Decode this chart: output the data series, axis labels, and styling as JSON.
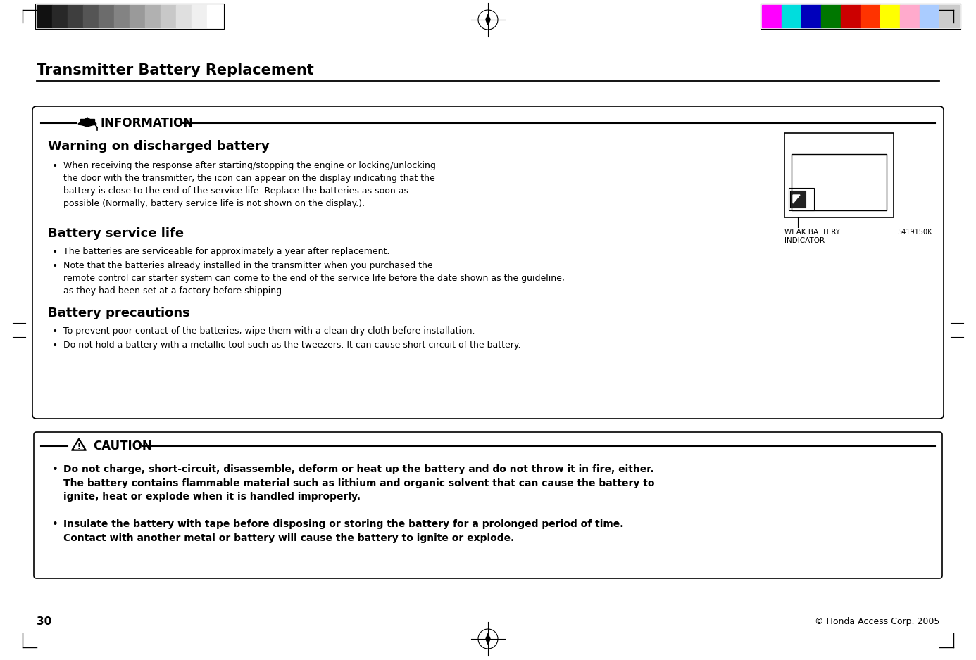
{
  "page_bg": "#ffffff",
  "page_num": "30",
  "copyright": "© Honda Access Corp. 2005",
  "title": "Transmitter Battery Replacement",
  "info_box": {
    "header": "INFORMATION",
    "sections": [
      {
        "heading": "Warning on discharged battery",
        "bullets": [
          "When receiving the response after starting/stopping the engine or locking/unlocking\nthe door with the transmitter, the icon can appear on the display indicating that the\nbattery is close to the end of the service life. Replace the batteries as soon as\npossible (Normally, battery service life is not shown on the display.)."
        ]
      },
      {
        "heading": "Battery service life",
        "bullets": [
          "The batteries are serviceable for approximately a year after replacement.",
          "Note that the batteries already installed in the transmitter when you purchased the\nremote control car starter system can come to the end of the service life before the date shown as the guideline,\nas they had been set at a factory before shipping."
        ]
      },
      {
        "heading": "Battery precautions",
        "bullets": [
          "To prevent poor contact of the batteries, wipe them with a clean dry cloth before installation.",
          "Do not hold a battery with a metallic tool such as the tweezers. It can cause short circuit of the battery."
        ]
      }
    ],
    "image_label1": "WEAK BATTERY",
    "image_label2": "INDICATOR",
    "image_code": "5419150K"
  },
  "caution_box": {
    "header": "CAUTION",
    "bullets": [
      "Do not charge, short-circuit, disassemble, deform or heat up the battery and do not throw it in fire, either.\nThe battery contains flammable material such as lithium and organic solvent that can cause the battery to\nignite, heat or explode when it is handled improperly.",
      "Insulate the battery with tape before disposing or storing the battery for a prolonged period of time.\nContact with another metal or battery will cause the battery to ignite or explode."
    ]
  },
  "color_bars_left": [
    "#111111",
    "#282828",
    "#3e3e3e",
    "#555555",
    "#6c6c6c",
    "#838383",
    "#9a9a9a",
    "#b1b1b1",
    "#c8c8c8",
    "#dfdfdf",
    "#f0f0f0",
    "#ffffff"
  ],
  "color_bars_right": [
    "#ff00ff",
    "#00dddd",
    "#0000bb",
    "#007700",
    "#cc0000",
    "#ff3300",
    "#ffff00",
    "#ffaacc",
    "#aaccff",
    "#cccccc"
  ]
}
